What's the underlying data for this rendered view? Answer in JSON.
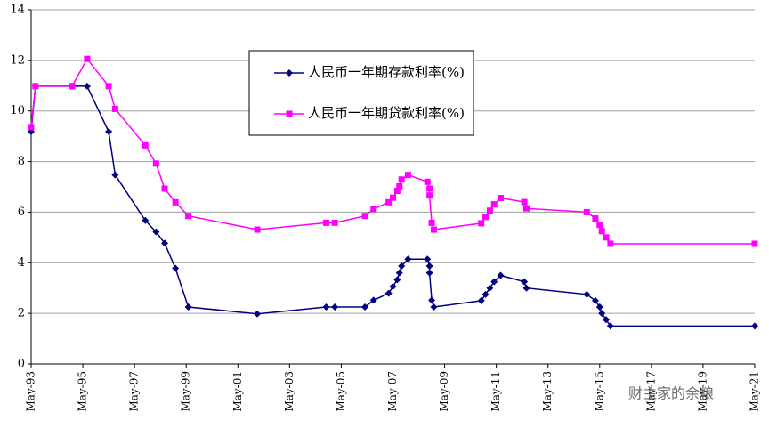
{
  "chart_data": {
    "type": "line",
    "x": [
      "1993-05",
      "1993-07",
      "1994-12",
      "1995-07",
      "1996-05",
      "1996-08",
      "1997-10",
      "1998-03",
      "1998-07",
      "1998-12",
      "1999-06",
      "2002-02",
      "2004-10",
      "2005-02",
      "2006-04",
      "2006-08",
      "2007-03",
      "2007-05",
      "2007-07",
      "2007-08",
      "2007-09",
      "2007-12",
      "2008-09",
      "2008-10",
      "2008-10",
      "2008-11",
      "2008-12",
      "2010-10",
      "2010-12",
      "2011-02",
      "2011-04",
      "2011-07",
      "2012-06",
      "2012-07",
      "2014-11",
      "2015-03",
      "2015-05",
      "2015-06",
      "2015-08",
      "2015-10",
      "2021-05"
    ],
    "series": [
      {
        "name": "人民币一年期存款利率(%)",
        "color": "#000080",
        "marker": "diamond",
        "values": [
          9.18,
          10.98,
          10.98,
          10.98,
          9.18,
          7.47,
          5.67,
          5.22,
          4.77,
          3.78,
          2.25,
          1.98,
          2.25,
          2.25,
          2.25,
          2.52,
          2.79,
          3.06,
          3.33,
          3.6,
          3.87,
          4.14,
          4.14,
          3.87,
          3.6,
          2.52,
          2.25,
          2.5,
          2.75,
          3.0,
          3.25,
          3.5,
          3.25,
          3.0,
          2.75,
          2.5,
          2.25,
          2.0,
          1.75,
          1.5,
          1.5
        ]
      },
      {
        "name": "人民币一年期贷款利率(%)",
        "color": "#ff00ff",
        "marker": "square",
        "values": [
          9.36,
          10.98,
          10.98,
          12.06,
          10.98,
          10.08,
          8.64,
          7.92,
          6.93,
          6.39,
          5.85,
          5.31,
          5.58,
          5.58,
          5.85,
          6.12,
          6.39,
          6.57,
          6.84,
          7.02,
          7.29,
          7.47,
          7.2,
          6.93,
          6.66,
          5.58,
          5.31,
          5.56,
          5.81,
          6.06,
          6.31,
          6.56,
          6.4,
          6.15,
          6.0,
          5.75,
          5.5,
          5.25,
          5.0,
          4.75,
          4.75
        ]
      }
    ],
    "xlim": [
      "1993-05",
      "2021-05"
    ],
    "xticks": [
      {
        "value": "1993-05",
        "label": "May-93"
      },
      {
        "value": "1995-05",
        "label": "May-95"
      },
      {
        "value": "1997-05",
        "label": "May-97"
      },
      {
        "value": "1999-05",
        "label": "May-99"
      },
      {
        "value": "2001-05",
        "label": "May-01"
      },
      {
        "value": "2003-05",
        "label": "May-03"
      },
      {
        "value": "2005-05",
        "label": "May-05"
      },
      {
        "value": "2007-05",
        "label": "May-07"
      },
      {
        "value": "2009-05",
        "label": "May-09"
      },
      {
        "value": "2011-05",
        "label": "May-11"
      },
      {
        "value": "2013-05",
        "label": "May-13"
      },
      {
        "value": "2015-05",
        "label": "May-15"
      },
      {
        "value": "2017-05",
        "label": "May-17"
      },
      {
        "value": "2019-05",
        "label": "May-19"
      },
      {
        "value": "2021-05",
        "label": "May-21"
      }
    ],
    "ylim": [
      0,
      14
    ],
    "yticks": [
      0,
      2,
      4,
      6,
      8,
      10,
      12,
      14
    ],
    "grid": true,
    "legend_position": "top",
    "watermark": "财主家的余粮"
  }
}
